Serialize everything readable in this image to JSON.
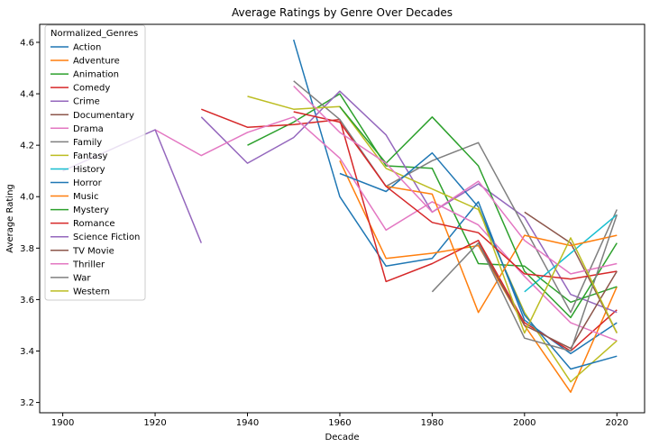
{
  "chart_data": {
    "type": "line",
    "title": "Average Ratings by Genre Over Decades",
    "xlabel": "Decade",
    "ylabel": "Average Rating",
    "xlim": [
      1895,
      2026
    ],
    "ylim": [
      3.16,
      4.67
    ],
    "xticks": [
      1900,
      1920,
      1940,
      1960,
      1980,
      2000,
      2020
    ],
    "yticks": [
      3.2,
      3.4,
      3.6,
      3.8,
      4.0,
      4.2,
      4.4,
      4.6
    ],
    "grid": false,
    "legend": {
      "title": "Normalized_Genres",
      "placement": "top-left"
    },
    "series": [
      {
        "name": "Action",
        "color": "#1f77b4",
        "x": [
          1950,
          1960,
          1970,
          1980,
          1990,
          2000,
          2010,
          2020
        ],
        "y": [
          4.61,
          4.0,
          3.73,
          3.76,
          3.98,
          3.52,
          3.39,
          3.51
        ]
      },
      {
        "name": "Adventure",
        "color": "#ff7f0e",
        "x": [
          1960,
          1970,
          1980,
          1990,
          2000,
          2010,
          2020
        ],
        "y": [
          4.14,
          3.76,
          3.78,
          3.81,
          3.5,
          3.24,
          3.65
        ]
      },
      {
        "name": "Animation",
        "color": "#2ca02c",
        "x": [
          1940,
          1950,
          1960,
          1970,
          1980,
          1990,
          2000,
          2010,
          2020
        ],
        "y": [
          4.2,
          4.29,
          4.4,
          4.12,
          4.11,
          3.74,
          3.73,
          3.59,
          3.65
        ]
      },
      {
        "name": "Comedy",
        "color": "#d62728",
        "x": [
          1930,
          1940,
          1950,
          1960,
          1970,
          1980,
          1990,
          2000,
          2010,
          2020
        ],
        "y": [
          4.34,
          4.27,
          4.28,
          4.3,
          3.67,
          3.74,
          3.83,
          3.51,
          3.4,
          3.56
        ]
      },
      {
        "name": "Crime",
        "color": "#9467bd",
        "x": [
          1930,
          1940,
          1950,
          1960,
          1970,
          1980,
          1990,
          2000,
          2010,
          2020
        ],
        "y": [
          4.31,
          4.13,
          4.23,
          4.41,
          4.24,
          3.94,
          4.05,
          3.92,
          3.62,
          3.55
        ]
      },
      {
        "name": "Documentary",
        "color": "#8c564b",
        "x": [
          2000,
          2010,
          2020
        ],
        "y": [
          3.94,
          3.82,
          3.47
        ]
      },
      {
        "name": "Drama",
        "color": "#e377c2",
        "x": [
          1920,
          1930,
          1940,
          1950,
          1960,
          1970,
          1980,
          1990,
          2000,
          2010,
          2020
        ],
        "y": [
          4.26,
          4.16,
          4.25,
          4.31,
          4.15,
          3.87,
          3.98,
          3.89,
          3.69,
          3.51,
          3.44
        ]
      },
      {
        "name": "Family",
        "color": "#7f7f7f",
        "x": [
          1950,
          1960,
          1970,
          1980,
          1990,
          2000,
          2010,
          2020
        ],
        "y": [
          4.45,
          4.3,
          4.04,
          4.14,
          4.21,
          3.88,
          3.55,
          3.95
        ]
      },
      {
        "name": "Fantasy",
        "color": "#bcbd22",
        "x": [
          1940,
          1950,
          1960,
          1970,
          1980,
          1990,
          2000,
          2010,
          2020
        ],
        "y": [
          4.39,
          4.34,
          4.35,
          4.11,
          4.03,
          3.95,
          3.55,
          3.28,
          3.44
        ]
      },
      {
        "name": "History",
        "color": "#17becf",
        "x": [
          2000,
          2010,
          2020
        ],
        "y": [
          3.63,
          3.78,
          3.93
        ]
      },
      {
        "name": "Horror",
        "color": "#1f77b4",
        "x": [
          1960,
          1970,
          1980,
          1990,
          2000,
          2010,
          2020
        ],
        "y": [
          4.09,
          4.02,
          4.17,
          3.96,
          3.54,
          3.33,
          3.38
        ]
      },
      {
        "name": "Music",
        "color": "#ff7f0e",
        "x": [
          1970,
          1980,
          1990,
          2000,
          2010,
          2020
        ],
        "y": [
          4.04,
          4.01,
          3.55,
          3.85,
          3.81,
          3.85
        ]
      },
      {
        "name": "Mystery",
        "color": "#2ca02c",
        "x": [
          1960,
          1970,
          1980,
          1990,
          2000,
          2010,
          2020
        ],
        "y": [
          4.35,
          4.13,
          4.31,
          4.12,
          3.71,
          3.53,
          3.82
        ]
      },
      {
        "name": "Romance",
        "color": "#d62728",
        "x": [
          1950,
          1960,
          1970,
          1980,
          1990,
          2000,
          2010,
          2020
        ],
        "y": [
          4.33,
          4.29,
          4.04,
          3.9,
          3.86,
          3.7,
          3.68,
          3.71
        ]
      },
      {
        "name": "Science Fiction",
        "color": "#9467bd",
        "x": [
          1900,
          1920,
          1930
        ],
        "y": [
          4.1,
          4.26,
          3.82
        ]
      },
      {
        "name": "TV Movie",
        "color": "#8c564b",
        "x": [
          1990,
          2000,
          2010,
          2020
        ],
        "y": [
          3.82,
          3.5,
          3.41,
          3.71
        ]
      },
      {
        "name": "Thriller",
        "color": "#e377c2",
        "x": [
          1950,
          1960,
          1970,
          1980,
          1990,
          2000,
          2010,
          2020
        ],
        "y": [
          4.43,
          4.25,
          4.13,
          3.94,
          4.06,
          3.83,
          3.7,
          3.74
        ]
      },
      {
        "name": "War",
        "color": "#7f7f7f",
        "x": [
          1980,
          1990,
          2000,
          2010,
          2020
        ],
        "y": [
          3.63,
          3.82,
          3.45,
          3.4,
          3.93
        ]
      },
      {
        "name": "Western",
        "color": "#bcbd22",
        "x": [
          1990,
          2000,
          2010,
          2020
        ],
        "y": [
          3.96,
          3.47,
          3.84,
          3.47
        ]
      }
    ]
  }
}
